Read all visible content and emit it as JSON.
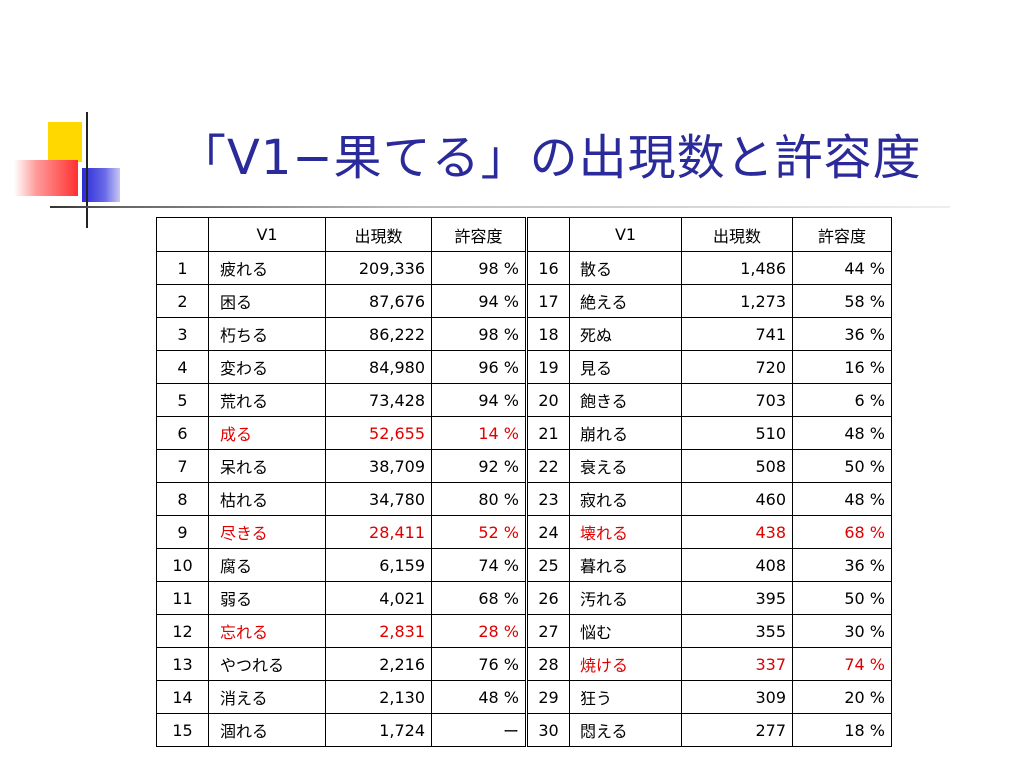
{
  "slide": {
    "title": "「V1−果てる」の出現数と許容度"
  },
  "table": {
    "headers": {
      "no": "",
      "verb": "V1",
      "count": "出現数",
      "tolerance": "許容度"
    },
    "left_rows": [
      {
        "no": "1",
        "verb": "疲れる",
        "count": "209,336",
        "tolerance": "98 %",
        "highlight": false
      },
      {
        "no": "2",
        "verb": "困る",
        "count": "87,676",
        "tolerance": "94 %",
        "highlight": false
      },
      {
        "no": "3",
        "verb": "朽ちる",
        "count": "86,222",
        "tolerance": "98 %",
        "highlight": false
      },
      {
        "no": "4",
        "verb": "変わる",
        "count": "84,980",
        "tolerance": "96 %",
        "highlight": false
      },
      {
        "no": "5",
        "verb": "荒れる",
        "count": "73,428",
        "tolerance": "94 %",
        "highlight": false
      },
      {
        "no": "6",
        "verb": "成る",
        "count": "52,655",
        "tolerance": "14 %",
        "highlight": true
      },
      {
        "no": "7",
        "verb": "呆れる",
        "count": "38,709",
        "tolerance": "92 %",
        "highlight": false
      },
      {
        "no": "8",
        "verb": "枯れる",
        "count": "34,780",
        "tolerance": "80 %",
        "highlight": false
      },
      {
        "no": "9",
        "verb": "尽きる",
        "count": "28,411",
        "tolerance": "52 %",
        "highlight": true
      },
      {
        "no": "10",
        "verb": "腐る",
        "count": "6,159",
        "tolerance": "74 %",
        "highlight": false
      },
      {
        "no": "11",
        "verb": "弱る",
        "count": "4,021",
        "tolerance": "68 %",
        "highlight": false
      },
      {
        "no": "12",
        "verb": "忘れる",
        "count": "2,831",
        "tolerance": "28 %",
        "highlight": true
      },
      {
        "no": "13",
        "verb": "やつれる",
        "count": "2,216",
        "tolerance": "76 %",
        "highlight": false
      },
      {
        "no": "14",
        "verb": "消える",
        "count": "2,130",
        "tolerance": "48 %",
        "highlight": false
      },
      {
        "no": "15",
        "verb": "涸れる",
        "count": "1,724",
        "tolerance": "ー",
        "highlight": false
      }
    ],
    "right_rows": [
      {
        "no": "16",
        "verb": "散る",
        "count": "1,486",
        "tolerance": "44 %",
        "highlight": false
      },
      {
        "no": "17",
        "verb": "絶える",
        "count": "1,273",
        "tolerance": "58 %",
        "highlight": false
      },
      {
        "no": "18",
        "verb": "死ぬ",
        "count": "741",
        "tolerance": "36 %",
        "highlight": false
      },
      {
        "no": "19",
        "verb": "見る",
        "count": "720",
        "tolerance": "16 %",
        "highlight": false
      },
      {
        "no": "20",
        "verb": "飽きる",
        "count": "703",
        "tolerance": "6 %",
        "highlight": false
      },
      {
        "no": "21",
        "verb": "崩れる",
        "count": "510",
        "tolerance": "48 %",
        "highlight": false
      },
      {
        "no": "22",
        "verb": "衰える",
        "count": "508",
        "tolerance": "50 %",
        "highlight": false
      },
      {
        "no": "23",
        "verb": "寂れる",
        "count": "460",
        "tolerance": "48 %",
        "highlight": false
      },
      {
        "no": "24",
        "verb": "壊れる",
        "count": "438",
        "tolerance": "68 %",
        "highlight": true
      },
      {
        "no": "25",
        "verb": "暮れる",
        "count": "408",
        "tolerance": "36 %",
        "highlight": false
      },
      {
        "no": "26",
        "verb": "汚れる",
        "count": "395",
        "tolerance": "50 %",
        "highlight": false
      },
      {
        "no": "27",
        "verb": "悩む",
        "count": "355",
        "tolerance": "30 %",
        "highlight": false
      },
      {
        "no": "28",
        "verb": "焼ける",
        "count": "337",
        "tolerance": "74 %",
        "highlight": true
      },
      {
        "no": "29",
        "verb": "狂う",
        "count": "309",
        "tolerance": "20 %",
        "highlight": false
      },
      {
        "no": "30",
        "verb": "悶える",
        "count": "277",
        "tolerance": "18 %",
        "highlight": false
      }
    ]
  },
  "colors": {
    "title": "#2a2a9a",
    "highlight": "#e00000",
    "deco_yellow": "#ffd800",
    "deco_red": "#ff3030",
    "deco_blue": "#2a2ad8"
  }
}
